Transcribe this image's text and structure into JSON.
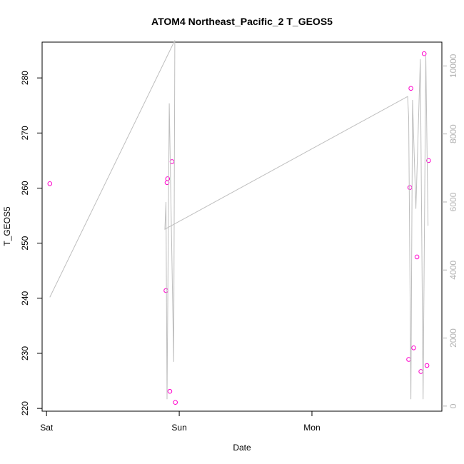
{
  "chart_data": {
    "type": "scatter",
    "title": "ATOM4 Northeast_Pacific_2 T_GEOS5",
    "xlabel": "Date",
    "ylabel": "T_GEOS5",
    "x_ticks": [
      {
        "label": "Sat",
        "value": 0
      },
      {
        "label": "Sun",
        "value": 24
      },
      {
        "label": "Mon",
        "value": 48
      }
    ],
    "xlim": [
      -0.8,
      71.5
    ],
    "y_left": {
      "lim": [
        219.5,
        286.5
      ],
      "ticks": [
        220,
        230,
        240,
        250,
        260,
        270,
        280
      ]
    },
    "y_right": {
      "lim": [
        -150,
        10700
      ],
      "ticks": [
        0,
        2000,
        4000,
        6000,
        8000,
        10000
      ],
      "color": "#b3b3b3"
    },
    "series": [
      {
        "axis": "left",
        "marker": "open-circle",
        "color": "#ff00cc",
        "points": [
          {
            "x": 0.6,
            "y": 260.8
          },
          {
            "x": 21.6,
            "y": 241.4
          },
          {
            "x": 21.8,
            "y": 261.0
          },
          {
            "x": 21.9,
            "y": 261.7
          },
          {
            "x": 22.3,
            "y": 223.1
          },
          {
            "x": 22.7,
            "y": 264.8
          },
          {
            "x": 23.3,
            "y": 221.1
          },
          {
            "x": 65.5,
            "y": 228.9
          },
          {
            "x": 65.7,
            "y": 260.1
          },
          {
            "x": 65.9,
            "y": 278.1
          },
          {
            "x": 66.4,
            "y": 231.0
          },
          {
            "x": 67.0,
            "y": 247.5
          },
          {
            "x": 67.7,
            "y": 226.7
          },
          {
            "x": 68.3,
            "y": 284.4
          },
          {
            "x": 68.8,
            "y": 227.8
          },
          {
            "x": 69.1,
            "y": 265.0
          }
        ]
      },
      {
        "axis": "right",
        "marker": "line",
        "color": "#bebebe",
        "points": [
          {
            "x": 0.6,
            "y": 3200
          },
          {
            "x": 23.2,
            "y": 10750
          },
          {
            "x": 23.0,
            "y": 1300
          },
          {
            "x": 22.2,
            "y": 8900
          },
          {
            "x": 21.8,
            "y": 200
          },
          {
            "x": 21.6,
            "y": 6000
          },
          {
            "x": 21.4,
            "y": 5200
          },
          {
            "x": 65.3,
            "y": 9100
          },
          {
            "x": 65.5,
            "y": 8500
          },
          {
            "x": 65.9,
            "y": 200
          },
          {
            "x": 66.2,
            "y": 9000
          },
          {
            "x": 66.8,
            "y": 5800
          },
          {
            "x": 67.6,
            "y": 10200
          },
          {
            "x": 68.1,
            "y": 200
          },
          {
            "x": 68.6,
            "y": 10300
          },
          {
            "x": 69.0,
            "y": 5300
          }
        ]
      }
    ],
    "grid": false,
    "legend": "none"
  }
}
